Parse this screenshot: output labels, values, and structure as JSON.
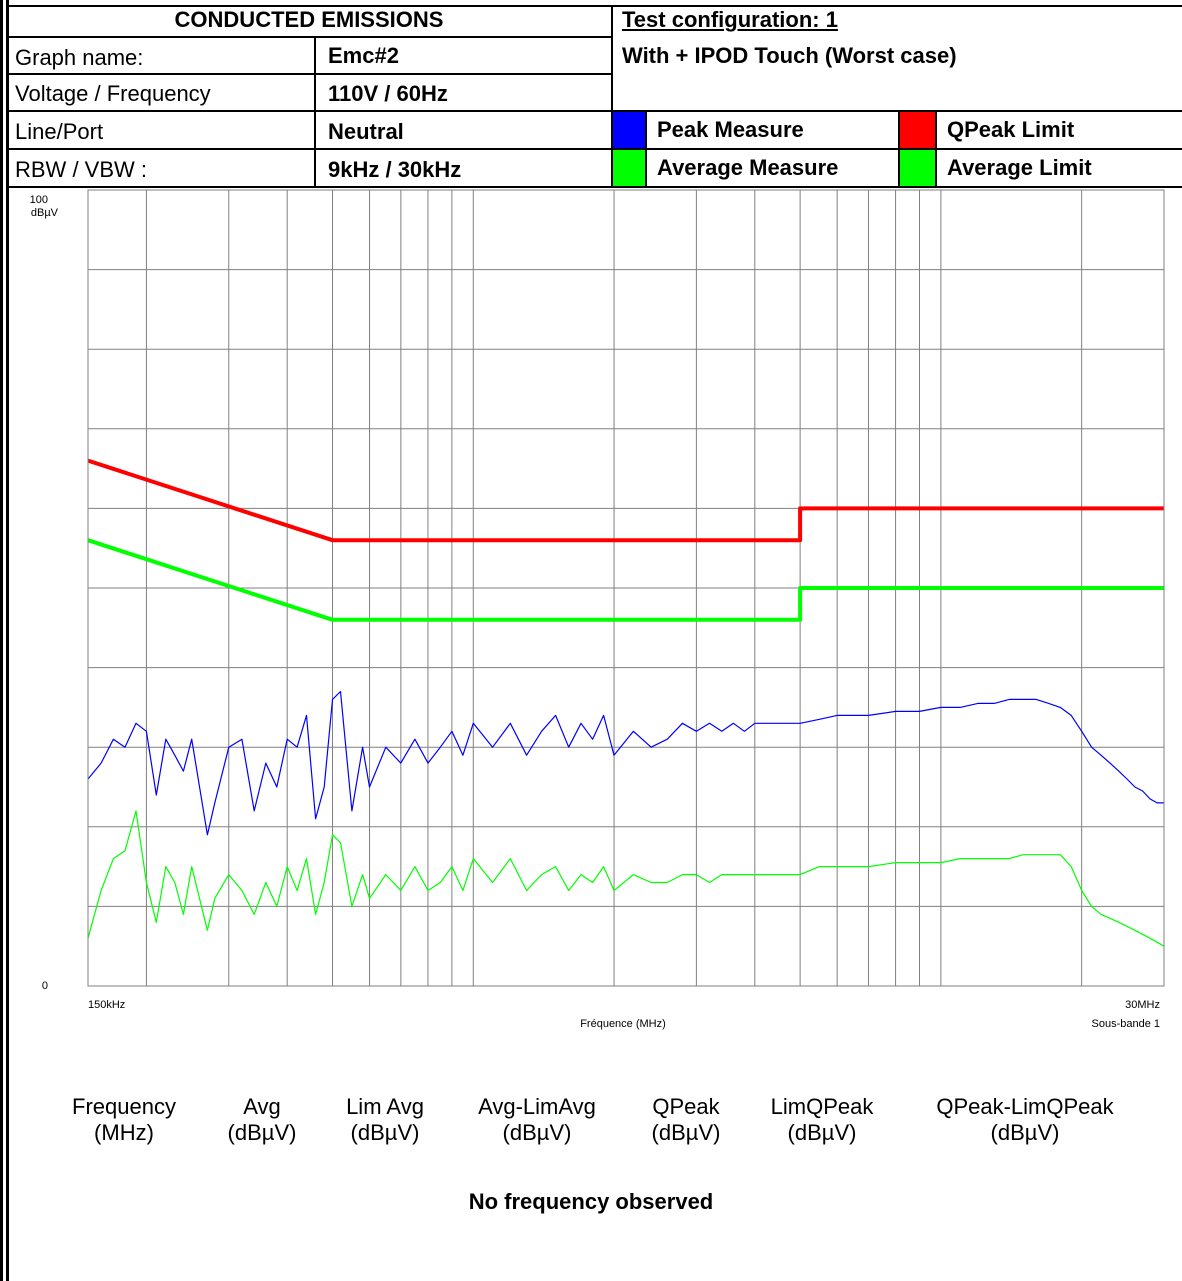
{
  "header": {
    "title": "CONDUCTED EMISSIONS",
    "graph_name_label": "Graph name:",
    "graph_name_value": "Emc#2",
    "voltage_label": "Voltage / Frequency",
    "voltage_value": "110V / 60Hz",
    "line_label": "Line/Port",
    "line_value": "Neutral",
    "rbw_label": "RBW / VBW :",
    "rbw_value": "9kHz / 30kHz",
    "test_config": "Test configuration: 1",
    "test_desc": "With + IPOD Touch (Worst case)",
    "legend": [
      {
        "label": "Peak Measure",
        "color": "#0000ff"
      },
      {
        "label": "QPeak Limit",
        "color": "#ff0000"
      },
      {
        "label": "Average Measure",
        "color": "#00ff00"
      },
      {
        "label": "Average Limit",
        "color": "#00ff00"
      }
    ]
  },
  "chart_data": {
    "type": "line",
    "xlabel": "Fréquence (MHz)",
    "x_min_label": "150kHz",
    "x_max_label": "30MHz",
    "subband_label": "Sous-bande 1",
    "ylabel": "dBµV",
    "y_top_label": "100",
    "y_bottom_label": "0",
    "xscale": "log",
    "xlim": [
      0.15,
      30
    ],
    "ylim": [
      0,
      100
    ],
    "grid": true,
    "series": [
      {
        "name": "QPeak Limit",
        "color": "#ff0000",
        "points": [
          [
            0.15,
            66
          ],
          [
            0.5,
            56
          ],
          [
            0.5,
            56
          ],
          [
            5,
            56
          ],
          [
            5,
            60
          ],
          [
            30,
            60
          ]
        ]
      },
      {
        "name": "Average Limit",
        "color": "#00ff00",
        "points": [
          [
            0.15,
            56
          ],
          [
            0.5,
            46
          ],
          [
            0.5,
            46
          ],
          [
            5,
            46
          ],
          [
            5,
            50
          ],
          [
            30,
            50
          ]
        ]
      },
      {
        "name": "Peak Measure",
        "color": "#0000ff",
        "points": [
          [
            0.15,
            26
          ],
          [
            0.16,
            28
          ],
          [
            0.17,
            31
          ],
          [
            0.18,
            30
          ],
          [
            0.19,
            33
          ],
          [
            0.2,
            32
          ],
          [
            0.21,
            24
          ],
          [
            0.22,
            31
          ],
          [
            0.23,
            29
          ],
          [
            0.24,
            27
          ],
          [
            0.25,
            31
          ],
          [
            0.27,
            19
          ],
          [
            0.28,
            23
          ],
          [
            0.3,
            30
          ],
          [
            0.32,
            31
          ],
          [
            0.34,
            22
          ],
          [
            0.36,
            28
          ],
          [
            0.38,
            25
          ],
          [
            0.4,
            31
          ],
          [
            0.42,
            30
          ],
          [
            0.44,
            34
          ],
          [
            0.46,
            21
          ],
          [
            0.48,
            25
          ],
          [
            0.5,
            36
          ],
          [
            0.52,
            37
          ],
          [
            0.55,
            22
          ],
          [
            0.58,
            30
          ],
          [
            0.6,
            25
          ],
          [
            0.65,
            30
          ],
          [
            0.7,
            28
          ],
          [
            0.75,
            31
          ],
          [
            0.8,
            28
          ],
          [
            0.85,
            30
          ],
          [
            0.9,
            32
          ],
          [
            0.95,
            29
          ],
          [
            1.0,
            33
          ],
          [
            1.1,
            30
          ],
          [
            1.2,
            33
          ],
          [
            1.3,
            29
          ],
          [
            1.4,
            32
          ],
          [
            1.5,
            34
          ],
          [
            1.6,
            30
          ],
          [
            1.7,
            33
          ],
          [
            1.8,
            31
          ],
          [
            1.9,
            34
          ],
          [
            2.0,
            29
          ],
          [
            2.2,
            32
          ],
          [
            2.4,
            30
          ],
          [
            2.6,
            31
          ],
          [
            2.8,
            33
          ],
          [
            3.0,
            32
          ],
          [
            3.2,
            33
          ],
          [
            3.4,
            32
          ],
          [
            3.6,
            33
          ],
          [
            3.8,
            32
          ],
          [
            4.0,
            33
          ],
          [
            4.5,
            33
          ],
          [
            5,
            33
          ],
          [
            5.5,
            33.5
          ],
          [
            6,
            34
          ],
          [
            7,
            34
          ],
          [
            8,
            34.5
          ],
          [
            9,
            34.5
          ],
          [
            10,
            35
          ],
          [
            11,
            35
          ],
          [
            12,
            35.5
          ],
          [
            13,
            35.5
          ],
          [
            14,
            36
          ],
          [
            15,
            36
          ],
          [
            16,
            36
          ],
          [
            17,
            35.5
          ],
          [
            18,
            35
          ],
          [
            19,
            34
          ],
          [
            20,
            32
          ],
          [
            21,
            30
          ],
          [
            22,
            29
          ],
          [
            23,
            28
          ],
          [
            24,
            27
          ],
          [
            25,
            26
          ],
          [
            26,
            25
          ],
          [
            27,
            24.5
          ],
          [
            28,
            23.5
          ],
          [
            29,
            23
          ],
          [
            30,
            23
          ]
        ]
      },
      {
        "name": "Average Measure",
        "color": "#00ff00",
        "points": [
          [
            0.15,
            6
          ],
          [
            0.16,
            12
          ],
          [
            0.17,
            16
          ],
          [
            0.18,
            17
          ],
          [
            0.19,
            22
          ],
          [
            0.2,
            13
          ],
          [
            0.21,
            8
          ],
          [
            0.22,
            15
          ],
          [
            0.23,
            13
          ],
          [
            0.24,
            9
          ],
          [
            0.25,
            15
          ],
          [
            0.27,
            7
          ],
          [
            0.28,
            11
          ],
          [
            0.3,
            14
          ],
          [
            0.32,
            12
          ],
          [
            0.34,
            9
          ],
          [
            0.36,
            13
          ],
          [
            0.38,
            10
          ],
          [
            0.4,
            15
          ],
          [
            0.42,
            12
          ],
          [
            0.44,
            16
          ],
          [
            0.46,
            9
          ],
          [
            0.48,
            13
          ],
          [
            0.5,
            19
          ],
          [
            0.52,
            18
          ],
          [
            0.55,
            10
          ],
          [
            0.58,
            14
          ],
          [
            0.6,
            11
          ],
          [
            0.65,
            14
          ],
          [
            0.7,
            12
          ],
          [
            0.75,
            15
          ],
          [
            0.8,
            12
          ],
          [
            0.85,
            13
          ],
          [
            0.9,
            15
          ],
          [
            0.95,
            12
          ],
          [
            1.0,
            16
          ],
          [
            1.1,
            13
          ],
          [
            1.2,
            16
          ],
          [
            1.3,
            12
          ],
          [
            1.4,
            14
          ],
          [
            1.5,
            15
          ],
          [
            1.6,
            12
          ],
          [
            1.7,
            14
          ],
          [
            1.8,
            13
          ],
          [
            1.9,
            15
          ],
          [
            2.0,
            12
          ],
          [
            2.2,
            14
          ],
          [
            2.4,
            13
          ],
          [
            2.6,
            13
          ],
          [
            2.8,
            14
          ],
          [
            3.0,
            14
          ],
          [
            3.2,
            13
          ],
          [
            3.4,
            14
          ],
          [
            3.6,
            14
          ],
          [
            3.8,
            14
          ],
          [
            4.0,
            14
          ],
          [
            4.5,
            14
          ],
          [
            5,
            14
          ],
          [
            5.5,
            15
          ],
          [
            6,
            15
          ],
          [
            7,
            15
          ],
          [
            8,
            15.5
          ],
          [
            9,
            15.5
          ],
          [
            10,
            15.5
          ],
          [
            11,
            16
          ],
          [
            12,
            16
          ],
          [
            13,
            16
          ],
          [
            14,
            16
          ],
          [
            15,
            16.5
          ],
          [
            16,
            16.5
          ],
          [
            17,
            16.5
          ],
          [
            18,
            16.5
          ],
          [
            19,
            15
          ],
          [
            20,
            12
          ],
          [
            21,
            10
          ],
          [
            22,
            9
          ],
          [
            23,
            8.5
          ],
          [
            24,
            8
          ],
          [
            25,
            7.5
          ],
          [
            26,
            7
          ],
          [
            27,
            6.5
          ],
          [
            28,
            6
          ],
          [
            29,
            5.5
          ],
          [
            30,
            5
          ]
        ]
      }
    ]
  },
  "table": {
    "columns": [
      {
        "top": "Frequency",
        "bottom": "(MHz)"
      },
      {
        "top": "Avg",
        "bottom": "(dBµV)"
      },
      {
        "top": "Lim Avg",
        "bottom": "(dBµV)"
      },
      {
        "top": "Avg-LimAvg",
        "bottom": "(dBµV)"
      },
      {
        "top": "QPeak",
        "bottom": "(dBµV)"
      },
      {
        "top": "LimQPeak",
        "bottom": "(dBµV)"
      },
      {
        "top": "QPeak-LimQPeak",
        "bottom": "(dBµV)"
      }
    ],
    "empty_message": "No frequency observed"
  }
}
